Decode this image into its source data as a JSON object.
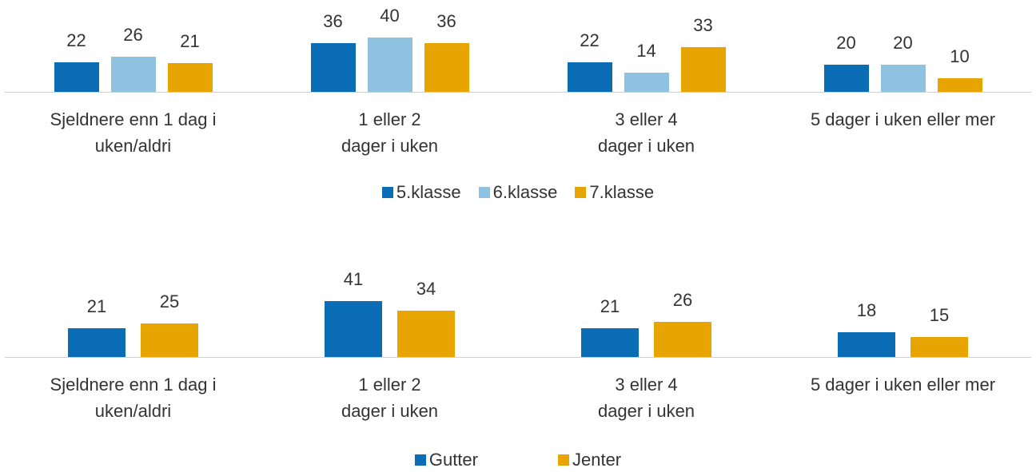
{
  "chart_data": [
    {
      "type": "bar",
      "categories": [
        "Sjeldnere enn 1 dag i\nuken/aldri",
        "1 eller 2\ndager i uken",
        "3 eller 4\ndager i uken",
        "5 dager i uken eller mer"
      ],
      "series": [
        {
          "name": "5.klasse",
          "color": "#0a6db6",
          "values": [
            22,
            36,
            22,
            20
          ]
        },
        {
          "name": "6.klasse",
          "color": "#8fc1e0",
          "values": [
            26,
            40,
            14,
            20
          ]
        },
        {
          "name": "7.klasse",
          "color": "#e8a400",
          "values": [
            21,
            36,
            33,
            10
          ]
        }
      ]
    },
    {
      "type": "bar",
      "categories": [
        "Sjeldnere enn 1 dag i\nuken/aldri",
        "1 eller 2\ndager i uken",
        "3 eller 4\ndager i uken",
        "5 dager i uken eller mer"
      ],
      "series": [
        {
          "name": "Gutter",
          "color": "#0a6db6",
          "values": [
            21,
            41,
            21,
            18
          ]
        },
        {
          "name": "Jenter",
          "color": "#e8a400",
          "values": [
            25,
            34,
            26,
            15
          ]
        }
      ]
    }
  ]
}
